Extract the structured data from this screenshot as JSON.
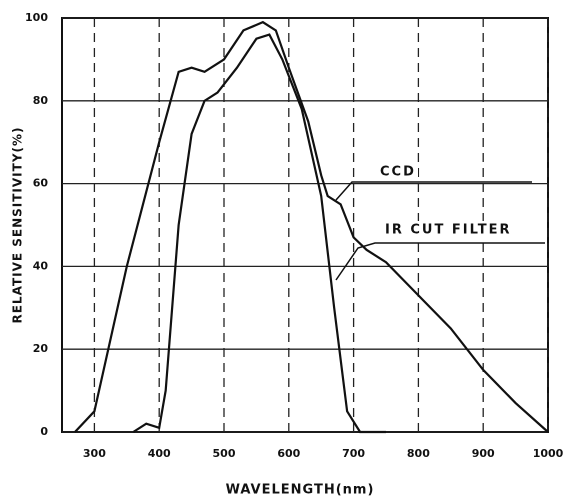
{
  "chart_data": {
    "type": "line",
    "x_label": "WAVELENGTH(nm)",
    "y_label": "RELATIVE SENSITIVITY(%)",
    "xlim": [
      250,
      1000
    ],
    "xticks": [
      300,
      400,
      500,
      600,
      700,
      800,
      900,
      1000
    ],
    "ylim": [
      0,
      100
    ],
    "yticks": [
      0,
      20,
      40,
      60,
      80,
      100
    ],
    "grid": true,
    "series": [
      {
        "name": "CCD",
        "color": "#111111",
        "x": [
          270,
          300,
          350,
          400,
          430,
          450,
          470,
          500,
          530,
          560,
          580,
          600,
          630,
          650,
          660,
          680,
          700,
          720,
          750,
          800,
          850,
          900,
          950,
          1000
        ],
        "values": [
          0,
          5,
          40,
          70,
          87,
          88,
          87,
          90,
          97,
          99,
          97,
          88,
          75,
          62,
          57,
          55,
          47,
          44,
          41,
          33,
          25,
          15,
          7,
          0
        ]
      },
      {
        "name": "IR CUT FILTER",
        "color": "#111111",
        "x": [
          360,
          380,
          400,
          410,
          430,
          450,
          470,
          490,
          520,
          550,
          570,
          590,
          620,
          650,
          670,
          690,
          710,
          750
        ],
        "values": [
          0,
          2,
          1,
          10,
          50,
          72,
          80,
          82,
          88,
          95,
          96,
          90,
          78,
          57,
          30,
          5,
          0,
          0
        ]
      }
    ]
  }
}
